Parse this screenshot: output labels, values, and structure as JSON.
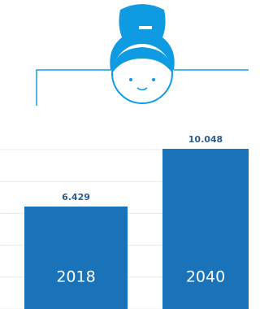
{
  "chart_data": {
    "type": "bar",
    "categories": [
      "2018",
      "2040"
    ],
    "values": [
      6.429,
      10.048
    ],
    "color": "#1a73b8",
    "ylim": [
      0,
      10
    ],
    "yticks": [
      0,
      2,
      4,
      6,
      8,
      10
    ],
    "grid": true
  }
}
